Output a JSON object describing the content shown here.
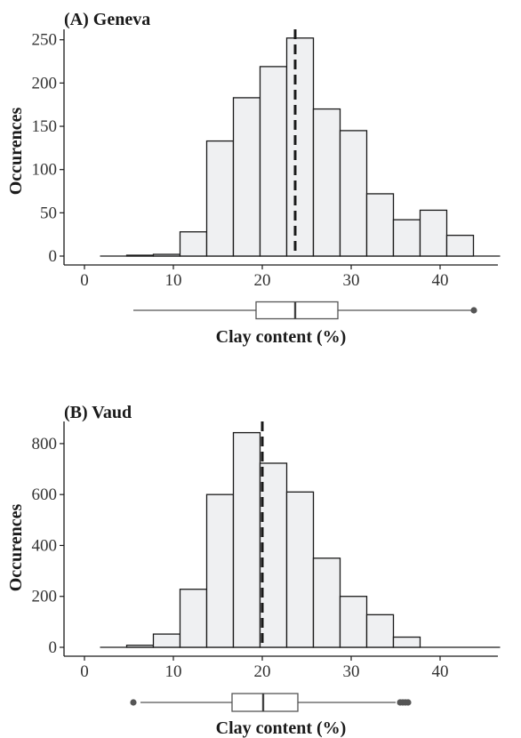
{
  "chart_data": [
    {
      "type": "bar",
      "title": "(A) Geneva",
      "xlabel": "Clay content (%)",
      "ylabel": "Occurences",
      "xlim": [
        -2,
        48
      ],
      "ylim": [
        0,
        260
      ],
      "xticks": [
        0,
        10,
        20,
        30,
        40
      ],
      "yticks": [
        0,
        50,
        100,
        150,
        200,
        250
      ],
      "bin_width": 3,
      "bins": [
        {
          "x0": 1.75,
          "x1": 4.75,
          "count": 0
        },
        {
          "x0": 4.75,
          "x1": 7.75,
          "count": 1
        },
        {
          "x0": 7.75,
          "x1": 10.75,
          "count": 2
        },
        {
          "x0": 10.75,
          "x1": 13.75,
          "count": 28
        },
        {
          "x0": 13.75,
          "x1": 16.75,
          "count": 133
        },
        {
          "x0": 16.75,
          "x1": 19.75,
          "count": 183
        },
        {
          "x0": 19.75,
          "x1": 22.75,
          "count": 219
        },
        {
          "x0": 22.75,
          "x1": 25.75,
          "count": 252
        },
        {
          "x0": 25.75,
          "x1": 28.75,
          "count": 170
        },
        {
          "x0": 28.75,
          "x1": 31.75,
          "count": 145
        },
        {
          "x0": 31.75,
          "x1": 34.75,
          "count": 72
        },
        {
          "x0": 34.75,
          "x1": 37.75,
          "count": 42
        },
        {
          "x0": 37.75,
          "x1": 40.75,
          "count": 53
        },
        {
          "x0": 40.75,
          "x1": 43.75,
          "count": 24
        },
        {
          "x0": 43.75,
          "x1": 46.75,
          "count": 0
        }
      ],
      "mean": 23.7,
      "boxplot": {
        "whisker_low": 5.5,
        "q1": 19.3,
        "median": 23.7,
        "q3": 28.5,
        "whisker_high": 43.5,
        "outliers": [
          43.8
        ]
      }
    },
    {
      "type": "bar",
      "title": "(B) Vaud",
      "xlabel": "Clay content (%)",
      "ylabel": "Occurences",
      "xlim": [
        -2,
        48
      ],
      "ylim": [
        0,
        880
      ],
      "xticks": [
        0,
        10,
        20,
        30,
        40
      ],
      "yticks": [
        0,
        200,
        400,
        600,
        800
      ],
      "bin_width": 3,
      "bins": [
        {
          "x0": 1.75,
          "x1": 4.75,
          "count": 0
        },
        {
          "x0": 4.75,
          "x1": 7.75,
          "count": 8
        },
        {
          "x0": 7.75,
          "x1": 10.75,
          "count": 52
        },
        {
          "x0": 10.75,
          "x1": 13.75,
          "count": 228
        },
        {
          "x0": 13.75,
          "x1": 16.75,
          "count": 600
        },
        {
          "x0": 16.75,
          "x1": 19.75,
          "count": 843
        },
        {
          "x0": 19.75,
          "x1": 22.75,
          "count": 723
        },
        {
          "x0": 22.75,
          "x1": 25.75,
          "count": 610
        },
        {
          "x0": 25.75,
          "x1": 28.75,
          "count": 350
        },
        {
          "x0": 28.75,
          "x1": 31.75,
          "count": 200
        },
        {
          "x0": 31.75,
          "x1": 34.75,
          "count": 128
        },
        {
          "x0": 34.75,
          "x1": 37.75,
          "count": 40
        },
        {
          "x0": 37.75,
          "x1": 40.75,
          "count": 0
        },
        {
          "x0": 40.75,
          "x1": 43.75,
          "count": 0
        },
        {
          "x0": 43.75,
          "x1": 46.75,
          "count": 0
        }
      ],
      "mean": 20.0,
      "boxplot": {
        "whisker_low": 6.3,
        "q1": 16.6,
        "median": 20.1,
        "q3": 24.0,
        "whisker_high": 35.0,
        "outliers": [
          5.5,
          35.5,
          35.8,
          36.1,
          36.4
        ]
      }
    }
  ]
}
